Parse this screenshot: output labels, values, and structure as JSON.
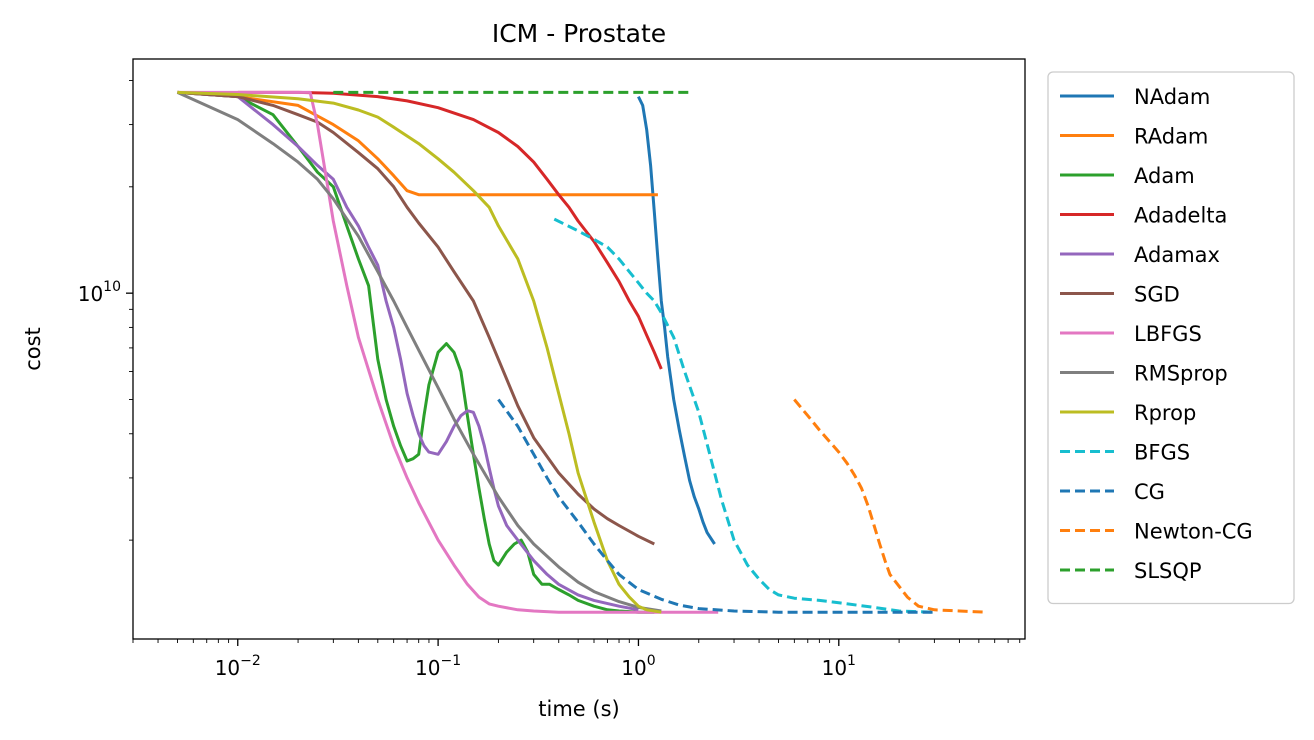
{
  "chart_data": {
    "type": "line",
    "title": "ICM - Prostate",
    "xlabel": "time (s)",
    "ylabel": "cost",
    "x_scale": "log",
    "y_scale": "log",
    "xlim": [
      0.003,
      85
    ],
    "ylim": [
      1050000000.0,
      46000000000.0
    ],
    "x_ticks": [
      {
        "value": 0.01,
        "label": "10",
        "exp": "−2"
      },
      {
        "value": 0.1,
        "label": "10",
        "exp": "−1"
      },
      {
        "value": 1,
        "label": "10",
        "exp": "0"
      },
      {
        "value": 10,
        "label": "10",
        "exp": "1"
      }
    ],
    "y_ticks": [
      {
        "value": 10000000000.0,
        "label": "10",
        "exp": "10"
      }
    ],
    "grid": false,
    "legend_position": "outside right",
    "series": [
      {
        "name": "NAdam",
        "color": "#1f77b4",
        "dash": "solid",
        "x": [
          1.0,
          1.05,
          1.1,
          1.15,
          1.2,
          1.25,
          1.3,
          1.35,
          1.4,
          1.5,
          1.6,
          1.7,
          1.8,
          1.9,
          2.0,
          2.1,
          2.2,
          2.4
        ],
        "y": [
          36000000000.0,
          34000000000.0,
          29000000000.0,
          23000000000.0,
          17000000000.0,
          12500000000.0,
          9500000000.0,
          8000000000.0,
          6600000000.0,
          5000000000.0,
          4100000000.0,
          3450000000.0,
          2950000000.0,
          2650000000.0,
          2450000000.0,
          2250000000.0,
          2100000000.0,
          1950000000.0
        ]
      },
      {
        "name": "RAdam",
        "color": "#ff7f0e",
        "dash": "solid",
        "x": [
          0.005,
          0.01,
          0.02,
          0.03,
          0.04,
          0.05,
          0.06,
          0.07,
          0.08,
          0.1,
          0.2,
          0.5,
          1.0,
          1.25
        ],
        "y": [
          37000000000.0,
          36000000000.0,
          34000000000.0,
          30000000000.0,
          27000000000.0,
          24000000000.0,
          21500000000.0,
          19500000000.0,
          19000000000.0,
          19000000000.0,
          19000000000.0,
          19000000000.0,
          19000000000.0,
          19000000000.0
        ]
      },
      {
        "name": "Adam",
        "color": "#2ca02c",
        "dash": "solid",
        "x": [
          0.005,
          0.01,
          0.015,
          0.02,
          0.025,
          0.03,
          0.035,
          0.04,
          0.045,
          0.05,
          0.055,
          0.06,
          0.065,
          0.07,
          0.075,
          0.08,
          0.085,
          0.09,
          0.1,
          0.11,
          0.12,
          0.13,
          0.14,
          0.15,
          0.16,
          0.17,
          0.18,
          0.19,
          0.2,
          0.22,
          0.24,
          0.26,
          0.28,
          0.3,
          0.33,
          0.36,
          0.4,
          0.45,
          0.5,
          0.6,
          0.7,
          0.8,
          1.0,
          1.2
        ],
        "y": [
          37000000000.0,
          36000000000.0,
          32000000000.0,
          26000000000.0,
          22000000000.0,
          20000000000.0,
          15500000000.0,
          12500000000.0,
          10500000000.0,
          6500000000.0,
          5000000000.0,
          4200000000.0,
          3700000000.0,
          3350000000.0,
          3400000000.0,
          3500000000.0,
          4500000000.0,
          5500000000.0,
          6800000000.0,
          7200000000.0,
          6800000000.0,
          6000000000.0,
          4500000000.0,
          3500000000.0,
          2800000000.0,
          2300000000.0,
          1950000000.0,
          1750000000.0,
          1700000000.0,
          1850000000.0,
          1950000000.0,
          2000000000.0,
          1850000000.0,
          1600000000.0,
          1500000000.0,
          1500000000.0,
          1450000000.0,
          1400000000.0,
          1350000000.0,
          1300000000.0,
          1270000000.0,
          1260000000.0,
          1250000000.0,
          1250000000.0
        ]
      },
      {
        "name": "Adadelta",
        "color": "#d62728",
        "dash": "solid",
        "x": [
          0.01,
          0.02,
          0.03,
          0.05,
          0.07,
          0.1,
          0.15,
          0.2,
          0.25,
          0.3,
          0.35,
          0.4,
          0.45,
          0.5,
          0.6,
          0.7,
          0.8,
          0.9,
          1.0,
          1.1,
          1.2,
          1.3
        ],
        "y": [
          37000000000.0,
          37000000000.0,
          36800000000.0,
          36000000000.0,
          35000000000.0,
          33500000000.0,
          31000000000.0,
          28500000000.0,
          26000000000.0,
          23500000000.0,
          21000000000.0,
          19000000000.0,
          17500000000.0,
          16000000000.0,
          14000000000.0,
          12200000000.0,
          10800000000.0,
          9500000000.0,
          8600000000.0,
          7600000000.0,
          6800000000.0,
          6100000000.0
        ]
      },
      {
        "name": "Adamax",
        "color": "#9467bd",
        "dash": "solid",
        "x": [
          0.005,
          0.01,
          0.015,
          0.02,
          0.025,
          0.03,
          0.035,
          0.04,
          0.045,
          0.05,
          0.055,
          0.06,
          0.065,
          0.07,
          0.075,
          0.08,
          0.085,
          0.09,
          0.1,
          0.11,
          0.12,
          0.13,
          0.14,
          0.15,
          0.16,
          0.17,
          0.18,
          0.19,
          0.2,
          0.22,
          0.25,
          0.3,
          0.35,
          0.4,
          0.5,
          0.6,
          0.8,
          1.0
        ],
        "y": [
          37000000000.0,
          36000000000.0,
          30000000000.0,
          26000000000.0,
          23000000000.0,
          21000000000.0,
          17500000000.0,
          15500000000.0,
          13500000000.0,
          12000000000.0,
          9500000000.0,
          8000000000.0,
          6500000000.0,
          5200000000.0,
          4500000000.0,
          4000000000.0,
          3700000000.0,
          3550000000.0,
          3500000000.0,
          3800000000.0,
          4200000000.0,
          4500000000.0,
          4650000000.0,
          4600000000.0,
          4200000000.0,
          3700000000.0,
          3200000000.0,
          2800000000.0,
          2500000000.0,
          2200000000.0,
          2000000000.0,
          1750000000.0,
          1600000000.0,
          1500000000.0,
          1400000000.0,
          1350000000.0,
          1300000000.0,
          1270000000.0
        ]
      },
      {
        "name": "SGD",
        "color": "#8c564b",
        "dash": "solid",
        "x": [
          0.005,
          0.01,
          0.015,
          0.02,
          0.025,
          0.03,
          0.04,
          0.05,
          0.06,
          0.07,
          0.08,
          0.1,
          0.12,
          0.15,
          0.18,
          0.2,
          0.25,
          0.3,
          0.4,
          0.5,
          0.6,
          0.7,
          0.8,
          1.0,
          1.2
        ],
        "y": [
          37000000000.0,
          36000000000.0,
          34000000000.0,
          32000000000.0,
          30500000000.0,
          28500000000.0,
          25000000000.0,
          22500000000.0,
          20000000000.0,
          17500000000.0,
          15800000000.0,
          13500000000.0,
          11500000000.0,
          9500000000.0,
          7500000000.0,
          6500000000.0,
          4800000000.0,
          3900000000.0,
          3100000000.0,
          2700000000.0,
          2450000000.0,
          2300000000.0,
          2200000000.0,
          2050000000.0,
          1950000000.0
        ]
      },
      {
        "name": "LBFGS",
        "color": "#e377c2",
        "dash": "solid",
        "x": [
          0.005,
          0.01,
          0.015,
          0.02,
          0.023,
          0.025,
          0.027,
          0.03,
          0.035,
          0.04,
          0.05,
          0.06,
          0.07,
          0.08,
          0.1,
          0.12,
          0.14,
          0.16,
          0.18,
          0.2,
          0.25,
          0.3,
          0.4,
          0.5,
          0.7,
          1.0,
          1.5,
          2.0,
          2.5
        ],
        "y": [
          37000000000.0,
          37000000000.0,
          37000000000.0,
          37000000000.0,
          37000000000.0,
          30000000000.0,
          23000000000.0,
          16000000000.0,
          10500000000.0,
          7500000000.0,
          5000000000.0,
          3700000000.0,
          3000000000.0,
          2550000000.0,
          2000000000.0,
          1700000000.0,
          1500000000.0,
          1380000000.0,
          1320000000.0,
          1300000000.0,
          1270000000.0,
          1260000000.0,
          1250000000.0,
          1250000000.0,
          1250000000.0,
          1250000000.0,
          1250000000.0,
          1250000000.0,
          1250000000.0
        ]
      },
      {
        "name": "RMSprop",
        "color": "#7f7f7f",
        "dash": "solid",
        "x": [
          0.005,
          0.01,
          0.015,
          0.02,
          0.025,
          0.03,
          0.04,
          0.05,
          0.06,
          0.07,
          0.08,
          0.1,
          0.12,
          0.15,
          0.2,
          0.25,
          0.3,
          0.4,
          0.5,
          0.6,
          0.8,
          1.0,
          1.3
        ],
        "y": [
          37000000000.0,
          31000000000.0,
          26500000000.0,
          23500000000.0,
          21000000000.0,
          18500000000.0,
          14500000000.0,
          11500000000.0,
          9500000000.0,
          8000000000.0,
          6900000000.0,
          5400000000.0,
          4400000000.0,
          3500000000.0,
          2650000000.0,
          2200000000.0,
          1950000000.0,
          1680000000.0,
          1520000000.0,
          1430000000.0,
          1340000000.0,
          1290000000.0,
          1260000000.0
        ]
      },
      {
        "name": "Rprop",
        "color": "#bcbd22",
        "dash": "solid",
        "x": [
          0.005,
          0.01,
          0.02,
          0.03,
          0.04,
          0.05,
          0.06,
          0.08,
          0.1,
          0.12,
          0.15,
          0.18,
          0.2,
          0.25,
          0.3,
          0.35,
          0.4,
          0.45,
          0.5,
          0.6,
          0.7,
          0.8,
          0.9,
          1.0,
          1.1,
          1.3
        ],
        "y": [
          37000000000.0,
          36500000000.0,
          35500000000.0,
          34500000000.0,
          33000000000.0,
          31500000000.0,
          29500000000.0,
          26500000000.0,
          24000000000.0,
          22000000000.0,
          19500000000.0,
          17500000000.0,
          15500000000.0,
          12500000000.0,
          9500000000.0,
          7000000000.0,
          5200000000.0,
          4000000000.0,
          3100000000.0,
          2250000000.0,
          1750000000.0,
          1500000000.0,
          1380000000.0,
          1300000000.0,
          1270000000.0,
          1250000000.0
        ]
      },
      {
        "name": "BFGS",
        "color": "#17becf",
        "dash": "dashed",
        "x": [
          0.38,
          0.5,
          0.6,
          0.7,
          0.8,
          0.9,
          1.0,
          1.1,
          1.2,
          1.3,
          1.5,
          1.7,
          2.0,
          2.3,
          2.6,
          3.0,
          3.5,
          4.0,
          4.5,
          5.0,
          6.0,
          8.0,
          10,
          15,
          20,
          30
        ],
        "y": [
          16200000000.0,
          15000000000.0,
          14200000000.0,
          13500000000.0,
          12500000000.0,
          11500000000.0,
          10700000000.0,
          10000000000.0,
          9500000000.0,
          8800000000.0,
          7500000000.0,
          6000000000.0,
          4600000000.0,
          3400000000.0,
          2600000000.0,
          2000000000.0,
          1700000000.0,
          1550000000.0,
          1450000000.0,
          1400000000.0,
          1370000000.0,
          1350000000.0,
          1330000000.0,
          1290000000.0,
          1260000000.0,
          1250000000.0
        ]
      },
      {
        "name": "CG",
        "color": "#1f77b4",
        "dash": "dashed",
        "x": [
          0.2,
          0.25,
          0.3,
          0.35,
          0.4,
          0.5,
          0.6,
          0.7,
          0.8,
          1.0,
          1.3,
          1.6,
          2.0,
          3.0,
          5.0,
          10,
          20,
          30
        ],
        "y": [
          5000000000.0,
          4200000000.0,
          3500000000.0,
          3000000000.0,
          2650000000.0,
          2250000000.0,
          1950000000.0,
          1750000000.0,
          1600000000.0,
          1450000000.0,
          1360000000.0,
          1310000000.0,
          1280000000.0,
          1260000000.0,
          1250000000.0,
          1250000000.0,
          1250000000.0,
          1250000000.0
        ]
      },
      {
        "name": "Newton-CG",
        "color": "#ff7f0e",
        "dash": "dashed",
        "x": [
          6.0,
          7.0,
          8.0,
          9.0,
          10,
          11,
          12,
          13,
          14,
          15,
          16,
          17,
          18,
          20,
          22,
          25,
          30,
          40,
          55
        ],
        "y": [
          5000000000.0,
          4500000000.0,
          4100000000.0,
          3800000000.0,
          3550000000.0,
          3300000000.0,
          3050000000.0,
          2800000000.0,
          2500000000.0,
          2200000000.0,
          1950000000.0,
          1750000000.0,
          1600000000.0,
          1480000000.0,
          1380000000.0,
          1300000000.0,
          1270000000.0,
          1260000000.0,
          1250000000.0
        ]
      },
      {
        "name": "SLSQP",
        "color": "#2ca02c",
        "dash": "dashed",
        "x": [
          0.03,
          0.1,
          0.5,
          1.0,
          1.8
        ],
        "y": [
          37000000000.0,
          37000000000.0,
          37000000000.0,
          37000000000.0,
          37000000000.0
        ]
      }
    ]
  }
}
